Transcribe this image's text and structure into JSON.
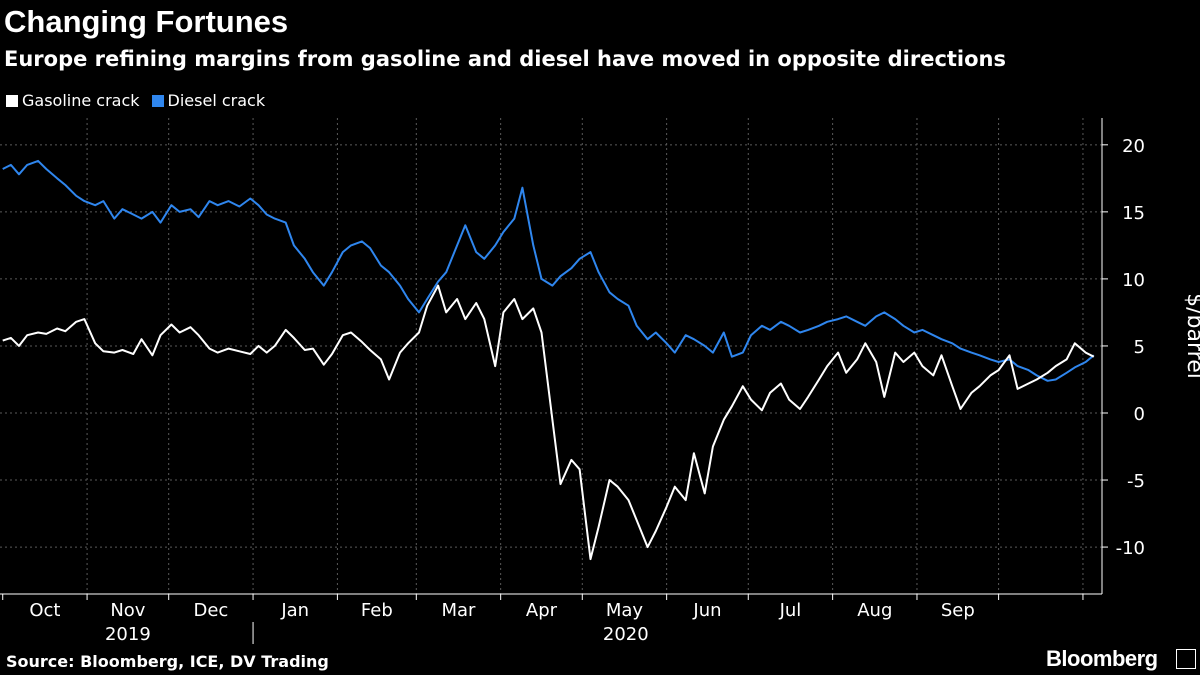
{
  "header": {
    "title": "Changing Fortunes",
    "subtitle": "Europe refining margins from gasoline and diesel have moved in opposite directions"
  },
  "legend": {
    "items": [
      {
        "label": "Gasoline crack",
        "color": "#ffffff"
      },
      {
        "label": "Diesel crack",
        "color": "#2f86ee"
      }
    ]
  },
  "footer": {
    "source": "Source: Bloomberg, ICE, DV Trading",
    "brand": "Bloomberg"
  },
  "chart_data": {
    "type": "line",
    "ylabel": "$/barrel",
    "ylim": [
      -13.5,
      22
    ],
    "yticks": [
      -10,
      -5,
      0,
      5,
      10,
      15,
      20
    ],
    "y_axis_side": "right",
    "grid": true,
    "x_axis": {
      "months": [
        "Oct",
        "Nov",
        "Dec",
        "Jan",
        "Feb",
        "Mar",
        "Apr",
        "May",
        "Jun",
        "Jul",
        "Aug",
        "Sep"
      ],
      "years": [
        {
          "label": "2019"
        },
        {
          "label": "2020"
        }
      ]
    },
    "series": [
      {
        "name": "Gasoline crack",
        "color": "#ffffff",
        "points": [
          [
            "2019-10-01",
            5.4
          ],
          [
            "2019-10-04",
            5.6
          ],
          [
            "2019-10-07",
            5.0
          ],
          [
            "2019-10-10",
            5.8
          ],
          [
            "2019-10-14",
            6.0
          ],
          [
            "2019-10-17",
            5.9
          ],
          [
            "2019-10-21",
            6.3
          ],
          [
            "2019-10-24",
            6.1
          ],
          [
            "2019-10-28",
            6.8
          ],
          [
            "2019-10-31",
            7.0
          ],
          [
            "2019-11-04",
            5.2
          ],
          [
            "2019-11-07",
            4.6
          ],
          [
            "2019-11-11",
            4.5
          ],
          [
            "2019-11-14",
            4.7
          ],
          [
            "2019-11-18",
            4.4
          ],
          [
            "2019-11-21",
            5.5
          ],
          [
            "2019-11-25",
            4.3
          ],
          [
            "2019-11-28",
            5.8
          ],
          [
            "2019-12-02",
            6.6
          ],
          [
            "2019-12-05",
            6.0
          ],
          [
            "2019-12-09",
            6.4
          ],
          [
            "2019-12-12",
            5.8
          ],
          [
            "2019-12-16",
            4.8
          ],
          [
            "2019-12-19",
            4.5
          ],
          [
            "2019-12-23",
            4.8
          ],
          [
            "2019-12-27",
            4.6
          ],
          [
            "2019-12-31",
            4.4
          ],
          [
            "2020-01-03",
            5.0
          ],
          [
            "2020-01-06",
            4.5
          ],
          [
            "2020-01-09",
            5.0
          ],
          [
            "2020-01-13",
            6.2
          ],
          [
            "2020-01-16",
            5.6
          ],
          [
            "2020-01-20",
            4.7
          ],
          [
            "2020-01-23",
            4.8
          ],
          [
            "2020-01-27",
            3.6
          ],
          [
            "2020-01-30",
            4.4
          ],
          [
            "2020-02-03",
            5.8
          ],
          [
            "2020-02-06",
            6.0
          ],
          [
            "2020-02-10",
            5.3
          ],
          [
            "2020-02-13",
            4.7
          ],
          [
            "2020-02-17",
            4.0
          ],
          [
            "2020-02-20",
            2.5
          ],
          [
            "2020-02-24",
            4.5
          ],
          [
            "2020-02-27",
            5.2
          ],
          [
            "2020-03-02",
            6.0
          ],
          [
            "2020-03-05",
            8.0
          ],
          [
            "2020-03-09",
            9.5
          ],
          [
            "2020-03-12",
            7.5
          ],
          [
            "2020-03-16",
            8.5
          ],
          [
            "2020-03-19",
            7.0
          ],
          [
            "2020-03-23",
            8.2
          ],
          [
            "2020-03-26",
            7.0
          ],
          [
            "2020-03-30",
            3.5
          ],
          [
            "2020-04-02",
            7.5
          ],
          [
            "2020-04-06",
            8.5
          ],
          [
            "2020-04-09",
            7.0
          ],
          [
            "2020-04-13",
            7.8
          ],
          [
            "2020-04-16",
            6.0
          ],
          [
            "2020-04-20",
            -0.5
          ],
          [
            "2020-04-23",
            -5.3
          ],
          [
            "2020-04-27",
            -3.5
          ],
          [
            "2020-04-30",
            -4.2
          ],
          [
            "2020-05-04",
            -10.9
          ],
          [
            "2020-05-07",
            -8.5
          ],
          [
            "2020-05-11",
            -5.0
          ],
          [
            "2020-05-14",
            -5.5
          ],
          [
            "2020-05-18",
            -6.5
          ],
          [
            "2020-05-21",
            -8.0
          ],
          [
            "2020-05-25",
            -10.0
          ],
          [
            "2020-05-28",
            -8.8
          ],
          [
            "2020-06-01",
            -7.0
          ],
          [
            "2020-06-04",
            -5.5
          ],
          [
            "2020-06-08",
            -6.5
          ],
          [
            "2020-06-11",
            -3.0
          ],
          [
            "2020-06-15",
            -6.0
          ],
          [
            "2020-06-18",
            -2.5
          ],
          [
            "2020-06-22",
            -0.5
          ],
          [
            "2020-06-25",
            0.5
          ],
          [
            "2020-06-29",
            2.0
          ],
          [
            "2020-07-02",
            1.0
          ],
          [
            "2020-07-06",
            0.2
          ],
          [
            "2020-07-09",
            1.5
          ],
          [
            "2020-07-13",
            2.2
          ],
          [
            "2020-07-16",
            1.0
          ],
          [
            "2020-07-20",
            0.3
          ],
          [
            "2020-07-23",
            1.2
          ],
          [
            "2020-07-27",
            2.5
          ],
          [
            "2020-07-30",
            3.5
          ],
          [
            "2020-08-03",
            4.5
          ],
          [
            "2020-08-06",
            3.0
          ],
          [
            "2020-08-10",
            4.0
          ],
          [
            "2020-08-13",
            5.2
          ],
          [
            "2020-08-17",
            3.8
          ],
          [
            "2020-08-20",
            1.2
          ],
          [
            "2020-08-24",
            4.5
          ],
          [
            "2020-08-27",
            3.8
          ],
          [
            "2020-08-31",
            4.5
          ],
          [
            "2020-09-03",
            3.5
          ],
          [
            "2020-09-07",
            2.8
          ],
          [
            "2020-09-10",
            4.3
          ],
          [
            "2020-09-14",
            2.0
          ],
          [
            "2020-09-17",
            0.3
          ],
          [
            "2020-09-21",
            1.5
          ],
          [
            "2020-09-24",
            2.0
          ],
          [
            "2020-09-28",
            2.8
          ],
          [
            "2020-10-01",
            3.2
          ],
          [
            "2020-10-05",
            4.3
          ],
          [
            "2020-10-08",
            1.8
          ],
          [
            "2020-10-12",
            2.2
          ],
          [
            "2020-10-15",
            2.5
          ],
          [
            "2020-10-19",
            3.0
          ],
          [
            "2020-10-22",
            3.5
          ],
          [
            "2020-10-26",
            4.0
          ],
          [
            "2020-10-29",
            5.2
          ],
          [
            "2020-11-02",
            4.5
          ],
          [
            "2020-11-05",
            4.2
          ]
        ]
      },
      {
        "name": "Diesel crack",
        "color": "#2f86ee",
        "points": [
          [
            "2019-10-01",
            18.2
          ],
          [
            "2019-10-04",
            18.5
          ],
          [
            "2019-10-07",
            17.8
          ],
          [
            "2019-10-10",
            18.5
          ],
          [
            "2019-10-14",
            18.8
          ],
          [
            "2019-10-17",
            18.2
          ],
          [
            "2019-10-21",
            17.5
          ],
          [
            "2019-10-24",
            17.0
          ],
          [
            "2019-10-28",
            16.2
          ],
          [
            "2019-10-31",
            15.8
          ],
          [
            "2019-11-04",
            15.5
          ],
          [
            "2019-11-07",
            15.8
          ],
          [
            "2019-11-11",
            14.5
          ],
          [
            "2019-11-14",
            15.2
          ],
          [
            "2019-11-18",
            14.8
          ],
          [
            "2019-11-21",
            14.5
          ],
          [
            "2019-11-25",
            15.0
          ],
          [
            "2019-11-28",
            14.2
          ],
          [
            "2019-12-02",
            15.5
          ],
          [
            "2019-12-05",
            15.0
          ],
          [
            "2019-12-09",
            15.2
          ],
          [
            "2019-12-12",
            14.6
          ],
          [
            "2019-12-16",
            15.8
          ],
          [
            "2019-12-19",
            15.5
          ],
          [
            "2019-12-23",
            15.8
          ],
          [
            "2019-12-27",
            15.4
          ],
          [
            "2019-12-31",
            16.0
          ],
          [
            "2020-01-03",
            15.5
          ],
          [
            "2020-01-06",
            14.8
          ],
          [
            "2020-01-09",
            14.5
          ],
          [
            "2020-01-13",
            14.2
          ],
          [
            "2020-01-16",
            12.5
          ],
          [
            "2020-01-20",
            11.5
          ],
          [
            "2020-01-23",
            10.5
          ],
          [
            "2020-01-27",
            9.5
          ],
          [
            "2020-01-30",
            10.5
          ],
          [
            "2020-02-03",
            12.0
          ],
          [
            "2020-02-06",
            12.5
          ],
          [
            "2020-02-10",
            12.8
          ],
          [
            "2020-02-13",
            12.3
          ],
          [
            "2020-02-17",
            11.0
          ],
          [
            "2020-02-20",
            10.5
          ],
          [
            "2020-02-24",
            9.5
          ],
          [
            "2020-02-27",
            8.5
          ],
          [
            "2020-03-02",
            7.5
          ],
          [
            "2020-03-05",
            8.5
          ],
          [
            "2020-03-09",
            9.8
          ],
          [
            "2020-03-12",
            10.5
          ],
          [
            "2020-03-16",
            12.5
          ],
          [
            "2020-03-19",
            14.0
          ],
          [
            "2020-03-23",
            12.0
          ],
          [
            "2020-03-26",
            11.5
          ],
          [
            "2020-03-30",
            12.5
          ],
          [
            "2020-04-02",
            13.5
          ],
          [
            "2020-04-06",
            14.5
          ],
          [
            "2020-04-09",
            16.8
          ],
          [
            "2020-04-13",
            12.5
          ],
          [
            "2020-04-16",
            10.0
          ],
          [
            "2020-04-20",
            9.5
          ],
          [
            "2020-04-23",
            10.2
          ],
          [
            "2020-04-27",
            10.8
          ],
          [
            "2020-04-30",
            11.5
          ],
          [
            "2020-05-04",
            12.0
          ],
          [
            "2020-05-07",
            10.5
          ],
          [
            "2020-05-11",
            9.0
          ],
          [
            "2020-05-14",
            8.5
          ],
          [
            "2020-05-18",
            8.0
          ],
          [
            "2020-05-21",
            6.5
          ],
          [
            "2020-05-25",
            5.5
          ],
          [
            "2020-05-28",
            6.0
          ],
          [
            "2020-06-01",
            5.2
          ],
          [
            "2020-06-04",
            4.5
          ],
          [
            "2020-06-08",
            5.8
          ],
          [
            "2020-06-11",
            5.5
          ],
          [
            "2020-06-15",
            5.0
          ],
          [
            "2020-06-18",
            4.5
          ],
          [
            "2020-06-22",
            6.0
          ],
          [
            "2020-06-25",
            4.2
          ],
          [
            "2020-06-29",
            4.5
          ],
          [
            "2020-07-02",
            5.8
          ],
          [
            "2020-07-06",
            6.5
          ],
          [
            "2020-07-09",
            6.2
          ],
          [
            "2020-07-13",
            6.8
          ],
          [
            "2020-07-16",
            6.5
          ],
          [
            "2020-07-20",
            6.0
          ],
          [
            "2020-07-23",
            6.2
          ],
          [
            "2020-07-27",
            6.5
          ],
          [
            "2020-07-30",
            6.8
          ],
          [
            "2020-08-03",
            7.0
          ],
          [
            "2020-08-06",
            7.2
          ],
          [
            "2020-08-10",
            6.8
          ],
          [
            "2020-08-13",
            6.5
          ],
          [
            "2020-08-17",
            7.2
          ],
          [
            "2020-08-20",
            7.5
          ],
          [
            "2020-08-24",
            7.0
          ],
          [
            "2020-08-27",
            6.5
          ],
          [
            "2020-08-31",
            6.0
          ],
          [
            "2020-09-03",
            6.2
          ],
          [
            "2020-09-07",
            5.8
          ],
          [
            "2020-09-10",
            5.5
          ],
          [
            "2020-09-14",
            5.2
          ],
          [
            "2020-09-17",
            4.8
          ],
          [
            "2020-09-21",
            4.5
          ],
          [
            "2020-09-24",
            4.3
          ],
          [
            "2020-09-28",
            4.0
          ],
          [
            "2020-10-01",
            3.8
          ],
          [
            "2020-10-05",
            4.0
          ],
          [
            "2020-10-08",
            3.5
          ],
          [
            "2020-10-12",
            3.2
          ],
          [
            "2020-10-15",
            2.8
          ],
          [
            "2020-10-19",
            2.4
          ],
          [
            "2020-10-22",
            2.5
          ],
          [
            "2020-10-26",
            3.0
          ],
          [
            "2020-10-29",
            3.4
          ],
          [
            "2020-11-02",
            3.8
          ],
          [
            "2020-11-05",
            4.3
          ]
        ]
      }
    ]
  }
}
